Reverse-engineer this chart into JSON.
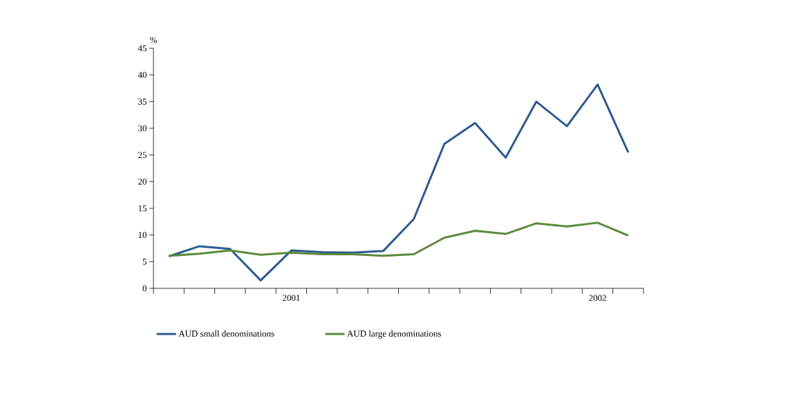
{
  "chart_data": {
    "type": "line",
    "ylabel": "%",
    "categories": [
      null,
      null,
      null,
      null,
      "2001",
      null,
      null,
      null,
      null,
      null,
      null,
      null,
      null,
      null,
      "2002",
      null
    ],
    "series": [
      {
        "name": "AUD small denominations",
        "color": "#2b5a8f",
        "values": [
          6.0,
          7.9,
          7.4,
          1.5,
          7.1,
          6.8,
          6.7,
          7.0,
          13.0,
          27.1,
          31.0,
          24.5,
          35.0,
          30.4,
          38.2,
          25.5
        ]
      },
      {
        "name": "AUD large denominations",
        "color": "#5a8a3a",
        "values": [
          6.1,
          6.5,
          7.1,
          6.3,
          6.7,
          6.4,
          6.4,
          6.1,
          6.4,
          9.5,
          10.8,
          10.2,
          12.2,
          11.6,
          12.3,
          9.9
        ]
      }
    ],
    "ylim": [
      0,
      45
    ],
    "yticks": [
      0,
      5,
      10,
      15,
      20,
      25,
      30,
      35,
      40,
      45
    ],
    "grid": false,
    "legend": "bottom",
    "marker": "none",
    "line_style": "solid"
  }
}
